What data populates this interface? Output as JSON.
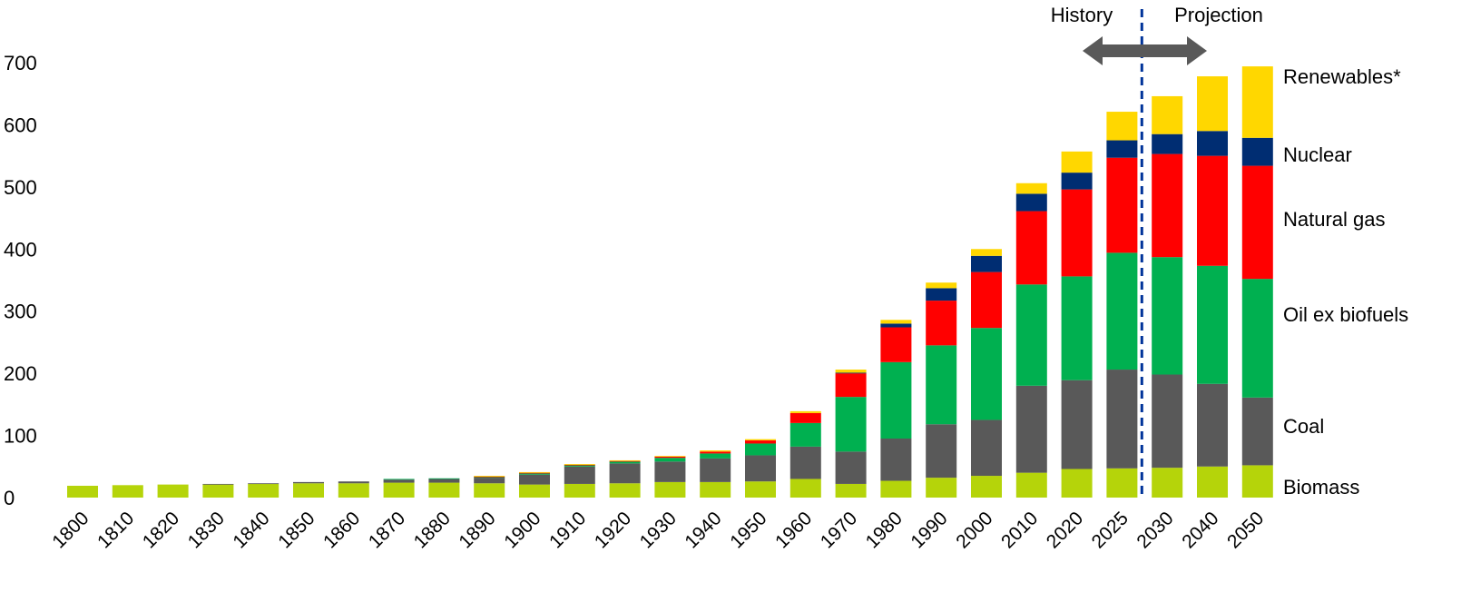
{
  "chart_data": {
    "type": "bar",
    "stacked": true,
    "title": "",
    "xlabel": "",
    "ylabel": "",
    "ylim": [
      0,
      700
    ],
    "y_ticks": [
      "0",
      "100",
      "200",
      "300",
      "400",
      "500",
      "600",
      "700"
    ],
    "grid": false,
    "legend_placement": "right, aligned with stacked segments",
    "categories": [
      "1800",
      "1810",
      "1820",
      "1830",
      "1840",
      "1850",
      "1860",
      "1870",
      "1880",
      "1890",
      "1900",
      "1910",
      "1920",
      "1930",
      "1940",
      "1950",
      "1960",
      "1970",
      "1980",
      "1990",
      "2000",
      "2010",
      "2020",
      "2025",
      "2030",
      "2040",
      "2050"
    ],
    "series": [
      {
        "name": "Biomass",
        "color": "#B5D40A",
        "values": [
          19,
          20,
          21,
          21,
          22,
          23,
          23,
          24,
          24,
          23,
          21,
          22,
          23,
          25,
          25,
          26,
          30,
          22,
          27,
          32,
          35,
          40,
          46,
          47,
          48,
          50,
          52
        ]
      },
      {
        "name": "Coal",
        "color": "#595959",
        "values": [
          0,
          0,
          0,
          1,
          1,
          2,
          3,
          5,
          6,
          9,
          16,
          28,
          32,
          33,
          38,
          42,
          52,
          52,
          68,
          86,
          90,
          140,
          143,
          159,
          150,
          133,
          109
        ]
      },
      {
        "name": "Oil ex biofuels",
        "color": "#00B050",
        "values": [
          0,
          0,
          0,
          0,
          0,
          0,
          0,
          1,
          1,
          1,
          2,
          2,
          3,
          6,
          8,
          19,
          38,
          88,
          123,
          127,
          148,
          163,
          167,
          188,
          189,
          190,
          191
        ]
      },
      {
        "name": "Natural gas",
        "color": "#FF0000",
        "values": [
          0,
          0,
          0,
          0,
          0,
          0,
          0,
          0,
          0,
          1,
          1,
          1,
          1,
          2,
          3,
          5,
          16,
          38,
          56,
          72,
          90,
          118,
          140,
          153,
          166,
          177,
          182
        ]
      },
      {
        "name": "Nuclear",
        "color": "#002D72",
        "values": [
          0,
          0,
          0,
          0,
          0,
          0,
          0,
          0,
          0,
          0,
          0,
          0,
          0,
          0,
          0,
          0,
          0,
          1,
          6,
          20,
          26,
          28,
          27,
          28,
          32,
          40,
          45
        ]
      },
      {
        "name": "Renewables*",
        "color": "#FFD700",
        "values": [
          0,
          0,
          0,
          0,
          0,
          0,
          0,
          0,
          0,
          1,
          1,
          1,
          1,
          1,
          2,
          2,
          3,
          5,
          6,
          9,
          11,
          17,
          34,
          46,
          61,
          88,
          115
        ]
      }
    ],
    "annotations": {
      "history_label": "History",
      "projection_label": "Projection",
      "divider_color": "#003399",
      "arrow_color": "#595959",
      "divider_after_category": "2025"
    }
  }
}
